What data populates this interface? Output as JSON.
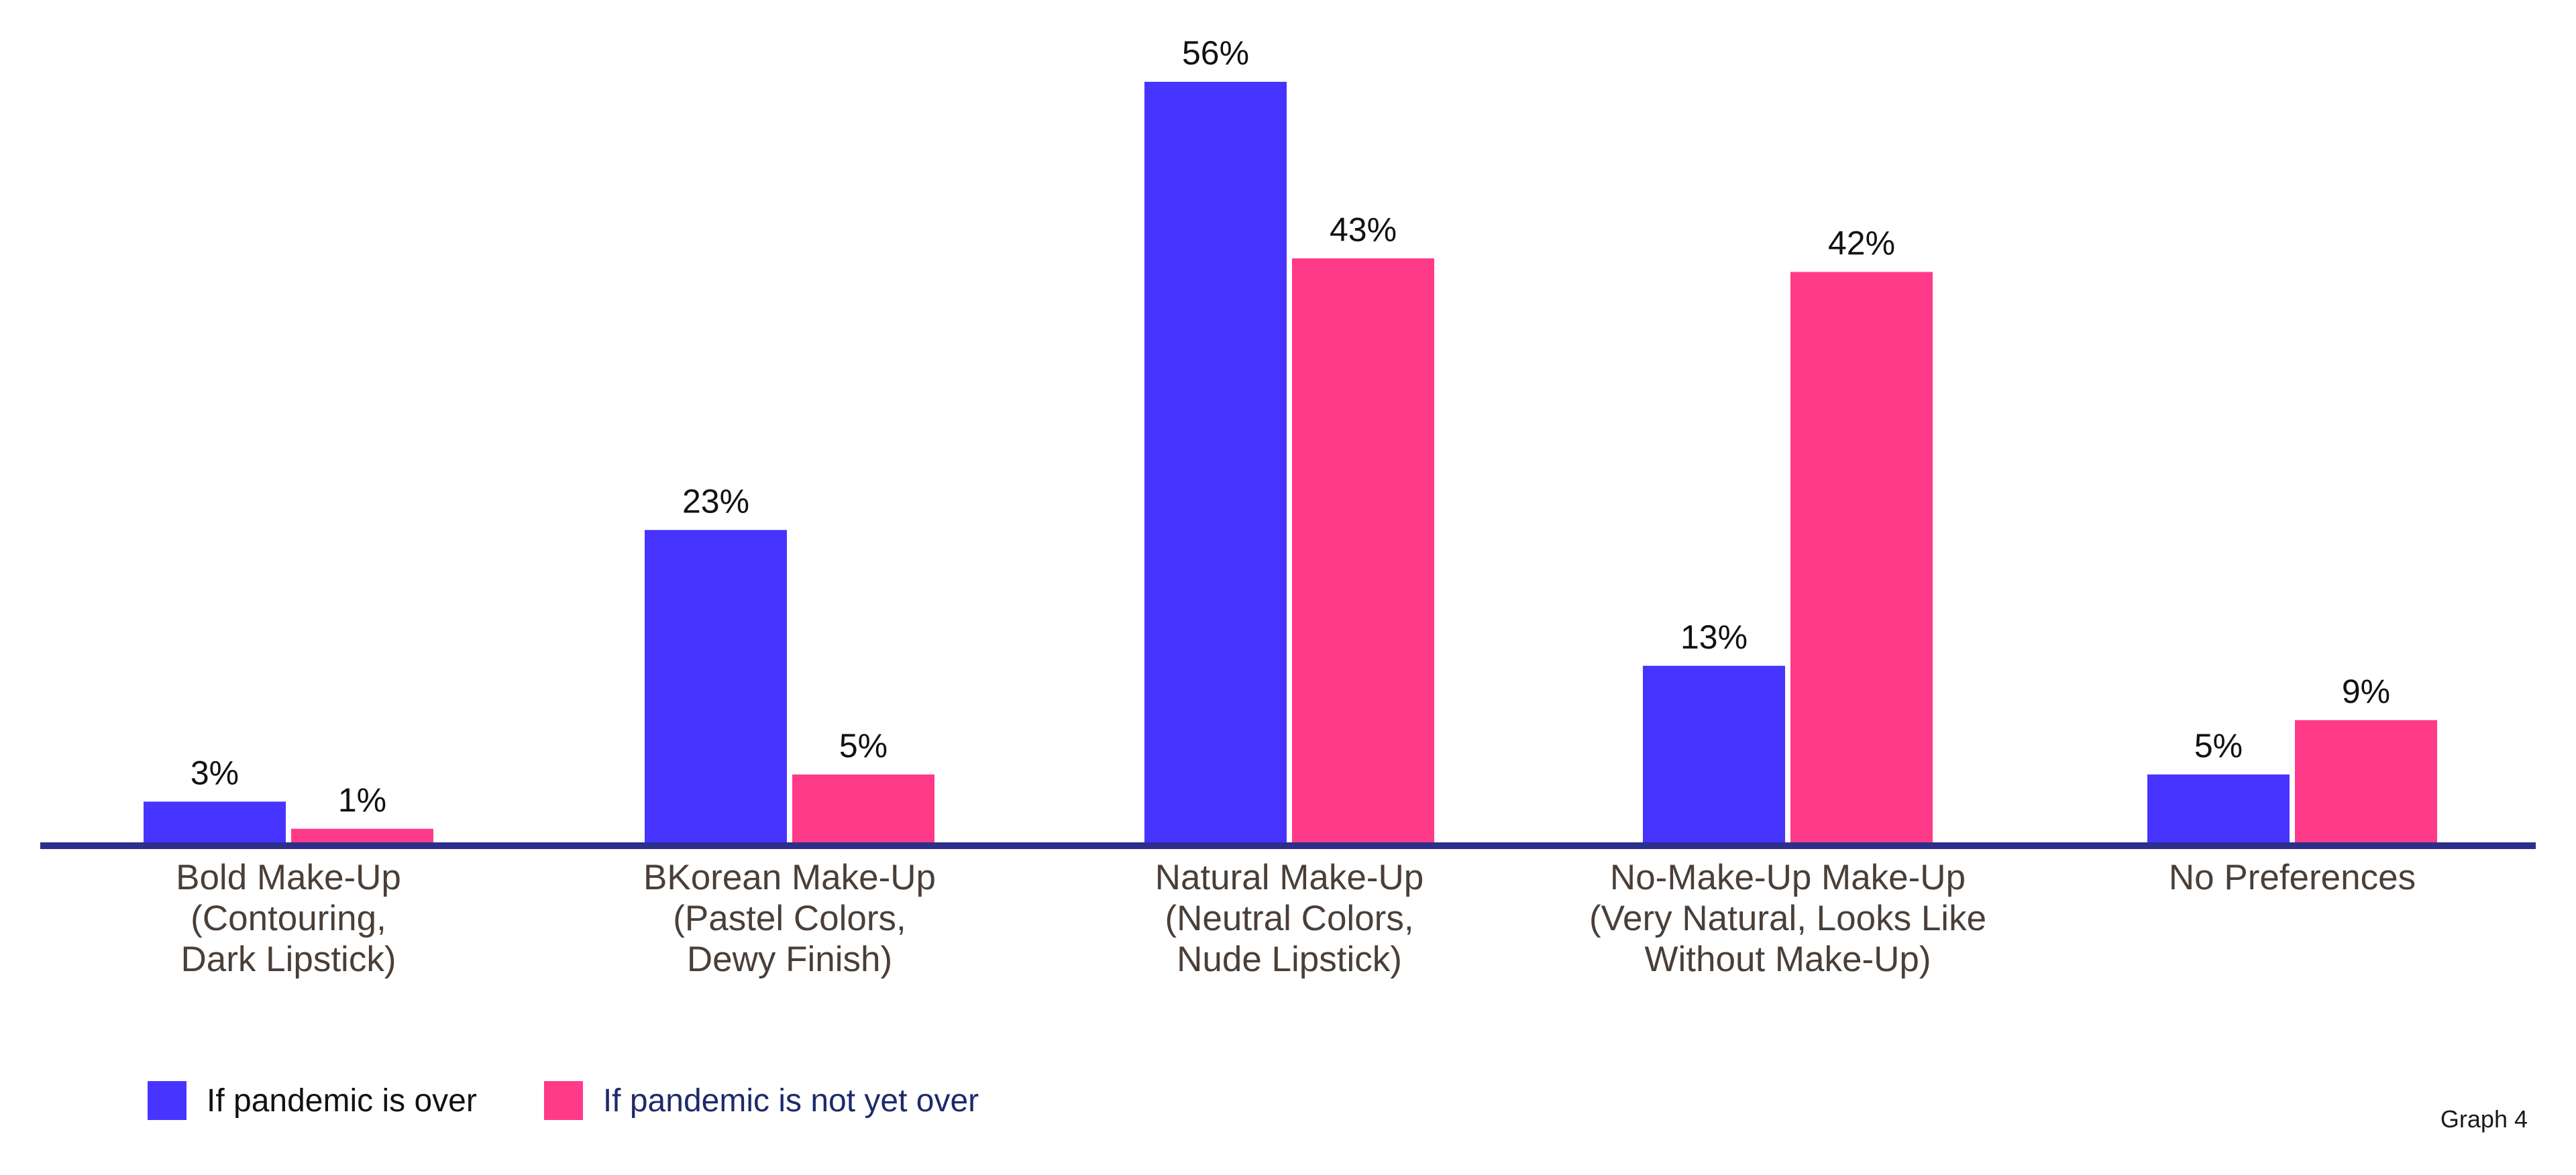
{
  "chart_data": {
    "type": "bar",
    "categories": [
      [
        "Bold Make-Up",
        "(Contouring,",
        "Dark Lipstick)"
      ],
      [
        "BKorean Make-Up",
        "(Pastel Colors,",
        "Dewy Finish)"
      ],
      [
        "Natural Make-Up",
        "(Neutral Colors,",
        "Nude Lipstick)"
      ],
      [
        "No-Make-Up Make-Up",
        "(Very Natural, Looks Like",
        "Without Make-Up)"
      ],
      [
        "No Preferences"
      ]
    ],
    "series": [
      {
        "name": "If pandemic is over",
        "values": [
          3,
          23,
          56,
          13,
          5
        ],
        "labels": [
          "3%",
          "23%",
          "56%",
          "13%",
          "5%"
        ]
      },
      {
        "name": "If pandemic is not yet over",
        "values": [
          1,
          5,
          43,
          42,
          9
        ],
        "labels": [
          "1%",
          "5%",
          "43%",
          "42%",
          "9%"
        ]
      }
    ],
    "ylim": [
      0,
      56
    ],
    "grid": false,
    "legend_position": "bottom-left"
  },
  "colors": {
    "series": [
      "#4834ff",
      "#ff3a88"
    ],
    "axis": "#2d2f8c",
    "label_text": "#111111",
    "category_text": "#4a3f38",
    "legend_text_1": "#111111",
    "legend_text_2": "#1d2a6b"
  },
  "legend": {
    "item1": "If pandemic is over",
    "item2": "If pandemic is not yet over"
  },
  "footer": {
    "graph_label": "Graph 4"
  }
}
